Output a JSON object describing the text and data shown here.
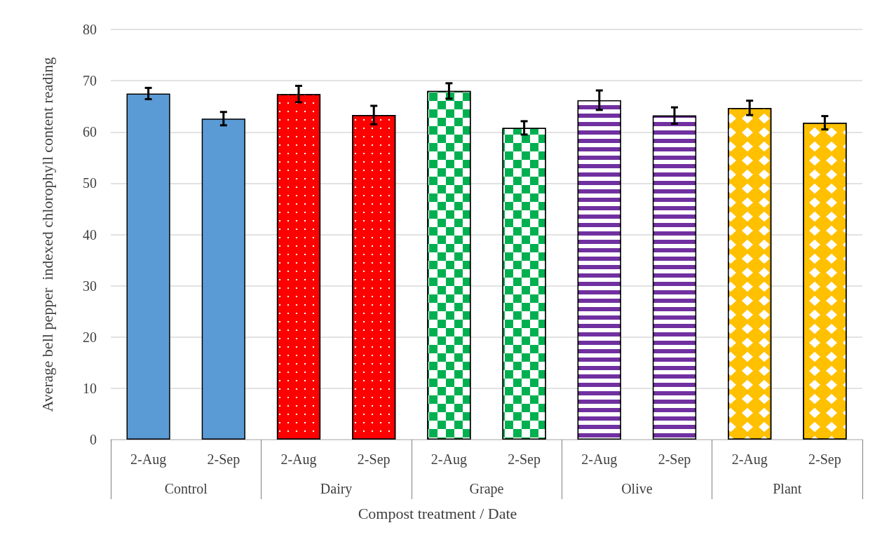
{
  "chart_data": {
    "type": "bar",
    "categories": [
      "2-Aug",
      "2-Sep",
      "2-Aug",
      "2-Sep",
      "2-Aug",
      "2-Sep",
      "2-Aug",
      "2-Sep",
      "2-Aug",
      "2-Sep"
    ],
    "values": [
      67.5,
      62.6,
      67.4,
      63.3,
      68.0,
      60.8,
      66.2,
      63.2,
      64.7,
      61.8
    ],
    "errors": [
      1.1,
      1.3,
      1.6,
      1.8,
      1.5,
      1.3,
      1.9,
      1.6,
      1.4,
      1.3
    ],
    "colors": [
      "#5b9bd5",
      "#5b9bd5",
      "#ff0000",
      "#ff0000",
      "#00b050",
      "#00b050",
      "#7030a0",
      "#7030a0",
      "#ffc000",
      "#ffc000"
    ],
    "xlabel": "Compost treatment / Date",
    "ylabel": "Average bell pepper  indexed chlorophyll content reading",
    "annotations": [
      "Control",
      "Dairy",
      "Grape",
      "Olive",
      "Plant"
    ],
    "ylim": [
      0,
      80
    ],
    "yticks": [
      0,
      10,
      20,
      30,
      40,
      50,
      60,
      70,
      80
    ],
    "grid": "y"
  }
}
